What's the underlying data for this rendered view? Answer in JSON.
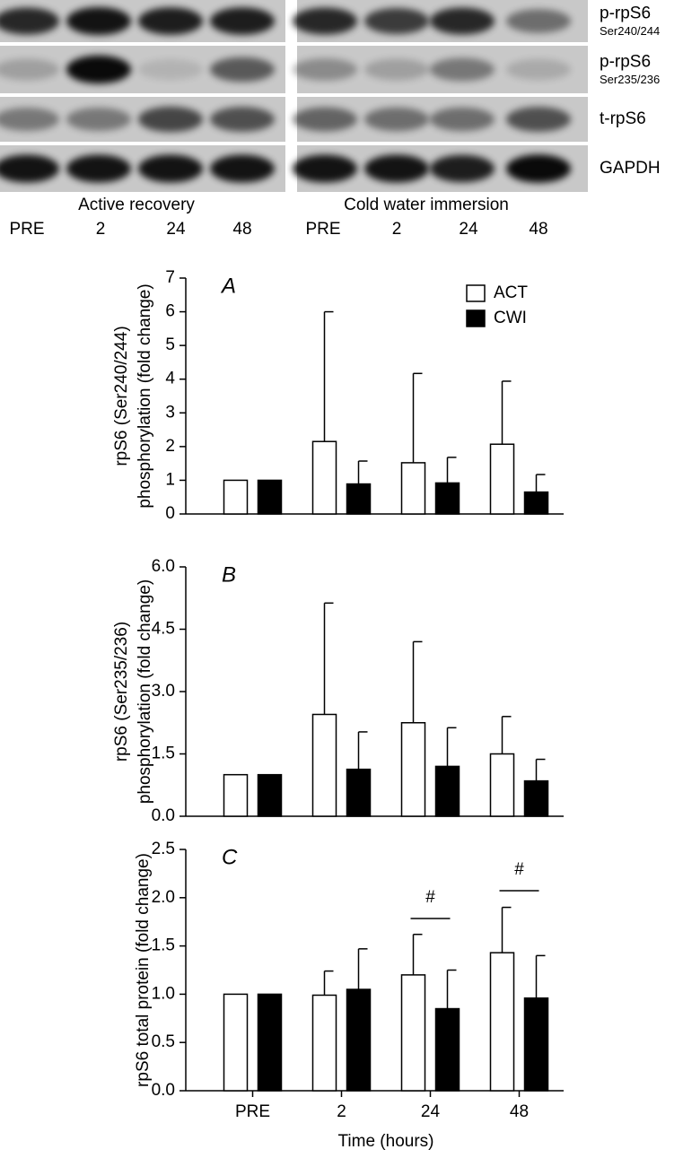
{
  "blot": {
    "rows": [
      {
        "label": "p-rpS6",
        "sub": "Ser240/244"
      },
      {
        "label": "p-rpS6",
        "sub": "Ser235/236"
      },
      {
        "label": "t-rpS6"
      },
      {
        "label": "GAPDH"
      }
    ],
    "groups": [
      "Active recovery",
      "Cold water immersion"
    ],
    "lanes": [
      "PRE",
      "2",
      "24",
      "48",
      "PRE",
      "2",
      "24",
      "48"
    ]
  },
  "chart_data": [
    {
      "type": "bar",
      "panel_label": "A",
      "ylabel": [
        "rpS6 (Ser240/244)",
        "phosphorylation (fold change)"
      ],
      "categories": [
        null,
        null,
        null,
        null
      ],
      "series": [
        {
          "name": "ACT",
          "color": "#ffffff",
          "values": [
            1.0,
            2.15,
            1.52,
            2.07
          ],
          "errors": [
            null,
            3.85,
            2.65,
            1.87
          ]
        },
        {
          "name": "CWI",
          "color": "#000000",
          "values": [
            1.0,
            0.89,
            0.92,
            0.65
          ],
          "errors": [
            null,
            0.68,
            0.76,
            0.52
          ]
        }
      ],
      "ylim": [
        0,
        7
      ],
      "yticks": [
        0,
        1,
        2,
        3,
        4,
        5,
        6,
        7
      ],
      "legend": "top-right"
    },
    {
      "type": "bar",
      "panel_label": "B",
      "ylabel": [
        "rpS6 (Ser235/236)",
        "phosphorylation (fold change)"
      ],
      "categories": [
        null,
        null,
        null,
        null
      ],
      "series": [
        {
          "color": "#ffffff",
          "values": [
            1.0,
            2.45,
            2.25,
            1.5
          ],
          "errors": [
            null,
            2.68,
            1.95,
            0.9
          ]
        },
        {
          "color": "#000000",
          "values": [
            1.0,
            1.13,
            1.2,
            0.85
          ],
          "errors": [
            null,
            0.9,
            0.93,
            0.52
          ]
        }
      ],
      "ylim": [
        0,
        6
      ],
      "yticks": [
        {
          "value": 0,
          "label": "0.0"
        },
        {
          "value": 1.5,
          "label": "1.5"
        },
        {
          "value": 3,
          "label": "3.0"
        },
        {
          "value": 4.5,
          "label": "4.5"
        },
        {
          "value": 6,
          "label": "6.0"
        }
      ]
    },
    {
      "type": "bar",
      "panel_label": "C",
      "ylabel": [
        "rpS6 total protein (fold change)"
      ],
      "xlabel": "Time (hours)",
      "categories": [
        "PRE",
        "2",
        "24",
        "48"
      ],
      "series": [
        {
          "color": "#ffffff",
          "values": [
            1.0,
            0.99,
            1.2,
            1.43
          ],
          "errors": [
            null,
            0.25,
            0.42,
            0.47
          ]
        },
        {
          "color": "#000000",
          "values": [
            1.0,
            1.05,
            0.85,
            0.96
          ],
          "errors": [
            null,
            0.42,
            0.4,
            0.44
          ]
        }
      ],
      "annotations": [
        "#",
        "#"
      ],
      "ylim": [
        0,
        2.5
      ],
      "yticks": [
        {
          "value": 0,
          "label": "0.0"
        },
        {
          "value": 0.5,
          "label": "0.5"
        },
        {
          "value": 1,
          "label": "1.0"
        },
        {
          "value": 1.5,
          "label": "1.5"
        },
        {
          "value": 2,
          "label": "2.0"
        },
        {
          "value": 2.5,
          "label": "2.5"
        }
      ]
    }
  ]
}
